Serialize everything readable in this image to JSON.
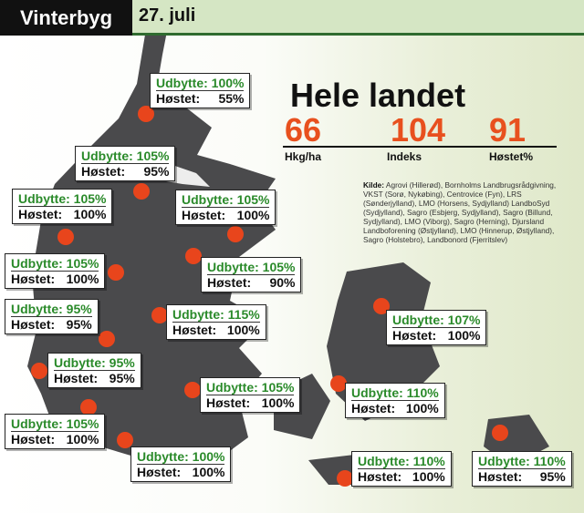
{
  "header": {
    "title": "Vinterbyg",
    "date": "27. juli"
  },
  "summary": {
    "title": "Hele landet",
    "stats": [
      {
        "value": 66,
        "label": "Hkg/ha"
      },
      {
        "value": 104,
        "label": "Indeks"
      },
      {
        "value": 91,
        "label": "Høstet%"
      }
    ]
  },
  "source": {
    "label": "Kilde:",
    "text": "Agrovi (Hillerød), Bornholms Landbrugsrådgivning, VKST (Sorø, Nykøbing), Centrovice (Fyn), LRS (Sønderjylland), LMO (Horsens, Sydjylland) LandboSyd (Sydjylland), Sagro (Esbjerg, Sydjylland), Sagro (Billund, Sydjylland), LMO (Viborg), Sagro (Herning), Djursland Landboforening (Østjylland), LMO (Hinnerup, Østjylland), Sagro (Holstebro), Landbonord (Fjerritslev)"
  },
  "yield_label": "Udbytte:",
  "harvest_label": "Høstet:",
  "regions": [
    {
      "yield": "100%",
      "harvest": "55%"
    },
    {
      "yield": "105%",
      "harvest": "95%"
    },
    {
      "yield": "105%",
      "harvest": "100%"
    },
    {
      "yield": "105%",
      "harvest": "100%"
    },
    {
      "yield": "105%",
      "harvest": "100%"
    },
    {
      "yield": "105%",
      "harvest": "90%"
    },
    {
      "yield": "95%",
      "harvest": "95%"
    },
    {
      "yield": "115%",
      "harvest": "100%"
    },
    {
      "yield": "107%",
      "harvest": "100%"
    },
    {
      "yield": "95%",
      "harvest": "95%"
    },
    {
      "yield": "105%",
      "harvest": "100%"
    },
    {
      "yield": "110%",
      "harvest": "100%"
    },
    {
      "yield": "105%",
      "harvest": "100%"
    },
    {
      "yield": "100%",
      "harvest": "100%"
    },
    {
      "yield": "110%",
      "harvest": "100%"
    },
    {
      "yield": "110%",
      "harvest": "95%"
    }
  ]
}
